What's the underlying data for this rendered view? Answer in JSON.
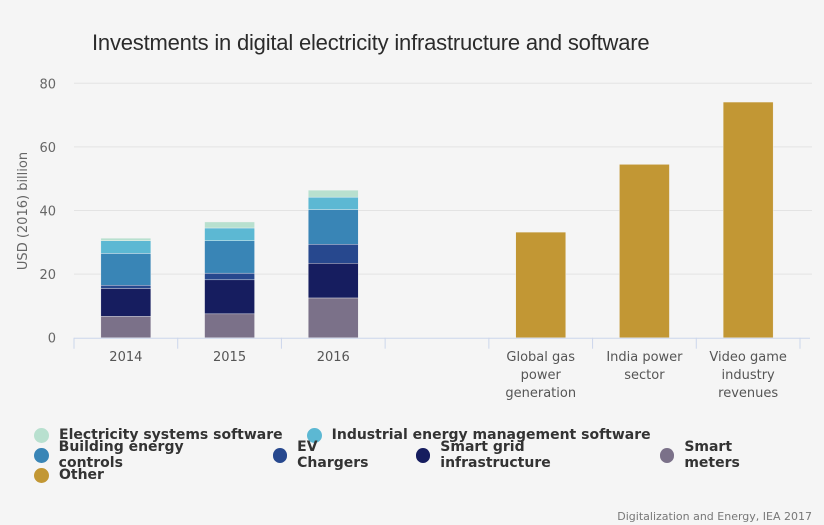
{
  "chart_data": {
    "type": "bar",
    "stacked": true,
    "title": "Investments in digital electricity infrastructure and software",
    "xlabel": "",
    "ylabel": "USD (2016) billion",
    "ylim": [
      0,
      80
    ],
    "yticks": [
      0,
      20,
      40,
      60,
      80
    ],
    "grid": true,
    "categories": [
      "2014",
      "2015",
      "2016",
      "",
      "Global gas power generation",
      "India power sector",
      "Video game industry revenues"
    ],
    "category_label_lines": [
      [
        "2014"
      ],
      [
        "2015"
      ],
      [
        "2016"
      ],
      [
        ""
      ],
      [
        "Global gas",
        "power",
        "generation"
      ],
      [
        "India power",
        "sector"
      ],
      [
        "Video game",
        "industry",
        "revenues"
      ]
    ],
    "series": [
      {
        "name": "Smart meters",
        "color": "#7b7189",
        "values": [
          6.7,
          7.5,
          12.5,
          0,
          0,
          0,
          0
        ]
      },
      {
        "name": "Smart grid infrastructure",
        "color": "#161d5f",
        "values": [
          8.8,
          10.7,
          10.9,
          0,
          0,
          0,
          0
        ]
      },
      {
        "name": "EV Chargers",
        "color": "#27488e",
        "values": [
          1.0,
          2.1,
          6.0,
          0,
          0,
          0,
          0
        ]
      },
      {
        "name": "Building energy controls",
        "color": "#3985b6",
        "values": [
          10.0,
          10.2,
          10.9,
          0,
          0,
          0,
          0
        ]
      },
      {
        "name": "Industrial energy management software",
        "color": "#5cb8d3",
        "values": [
          4.0,
          4.0,
          3.9,
          0,
          0,
          0,
          0
        ]
      },
      {
        "name": "Electricity systems software",
        "color": "#b8e0cf",
        "values": [
          0.8,
          1.9,
          2.2,
          0,
          0,
          0,
          0
        ]
      },
      {
        "name": "Other",
        "color": "#c29734",
        "values": [
          0,
          0,
          0,
          0,
          33.2,
          54.5,
          74.1
        ]
      }
    ],
    "legend": {
      "placement": "bottom",
      "rows": [
        [
          "Electricity systems software",
          "Industrial energy management software"
        ],
        [
          "Building energy controls",
          "EV Chargers",
          "Smart grid infrastructure",
          "Smart meters"
        ],
        [
          "Other"
        ]
      ]
    }
  },
  "source": "Digitalization and Energy, IEA 2017"
}
